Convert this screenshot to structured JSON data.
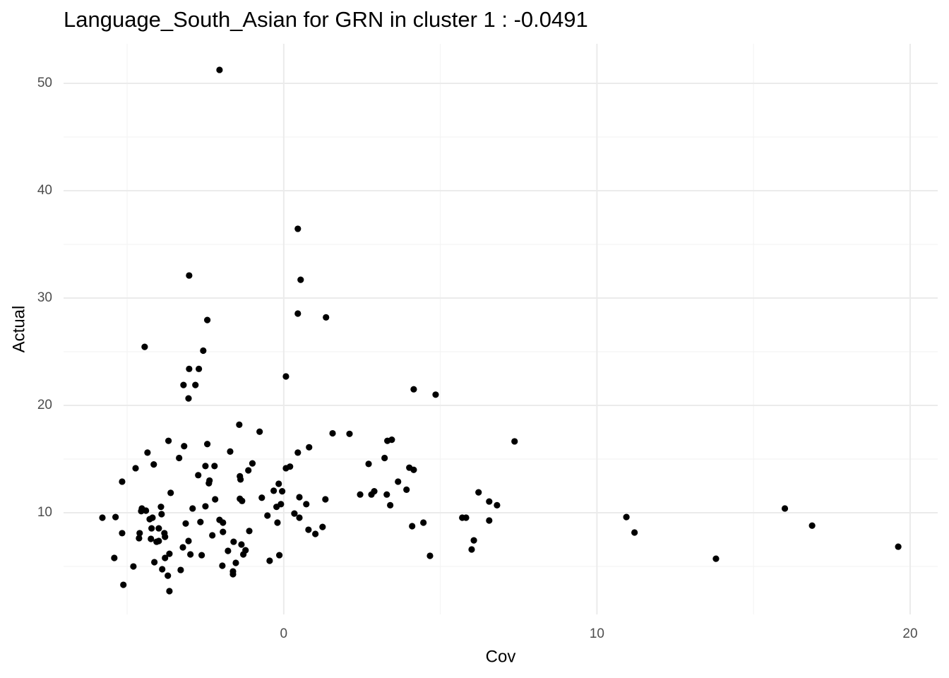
{
  "chart_data": {
    "type": "scatter",
    "title": "Language_South_Asian for GRN in cluster 1 : -0.0491",
    "xlabel": "Cov",
    "ylabel": "Actual",
    "color": "#000000",
    "grid": true,
    "xlim": [
      -7.03,
      20.88
    ],
    "ylim": [
      0.53,
      53.68
    ],
    "xticks": [
      0,
      10,
      20
    ],
    "yticks": [
      10,
      20,
      30,
      40,
      50
    ],
    "xminor": [
      -5,
      5,
      15
    ],
    "yminor": [
      5,
      15,
      25,
      35,
      45
    ],
    "x": [
      -2.05,
      0.45,
      0.54,
      -3.02,
      0.45,
      1.35,
      -2.44,
      -4.44,
      -2.57,
      -3.02,
      -2.71,
      0.07,
      -3.2,
      -2.82,
      -3.04,
      4.15,
      4.85,
      -1.42,
      -0.77,
      1.56,
      2.1,
      7.37,
      3.31,
      3.45,
      -3.68,
      -3.18,
      -2.44,
      -1.71,
      0.81,
      0.45,
      -4.35,
      -3.34,
      3.22,
      -1.0,
      -4.15,
      2.71,
      -4.73,
      -2.5,
      -2.21,
      0.07,
      0.2,
      4.01,
      4.15,
      -1.13,
      -2.73,
      -1.4,
      -1.38,
      -2.37,
      -2.39,
      3.65,
      -5.16,
      -0.16,
      -0.32,
      -0.05,
      3.92,
      -3.61,
      6.22,
      2.89,
      2.8,
      2.44,
      3.29,
      -0.7,
      0.5,
      -1.4,
      -2.19,
      -1.33,
      1.33,
      6.56,
      3.4,
      6.81,
      0.72,
      -0.09,
      -0.23,
      -2.5,
      -2.91,
      -3.92,
      -4.53,
      -4.4,
      -4.55,
      16.0,
      -3.9,
      0.34,
      -0.52,
      -5.37,
      -5.79,
      -4.19,
      -4.28,
      5.7,
      5.82,
      10.94,
      0.5,
      -2.05,
      -1.94,
      -2.66,
      -3.13,
      -0.2,
      6.56,
      4.46,
      4.1,
      1.24,
      16.87,
      -4.22,
      -3.99,
      -1.1,
      0.79,
      -4.6,
      -5.16,
      -3.81,
      -1.94,
      1.01,
      11.2,
      -2.28,
      -3.79,
      -4.62,
      -4.24,
      -4.06,
      -3.04,
      -3.99,
      6.07,
      -1.6,
      -1.35,
      -3.22,
      19.62,
      6.0,
      -1.78,
      -1.22,
      -3.65,
      -2.98,
      -2.62,
      -0.14,
      4.67,
      -1.29,
      -3.79,
      -5.41,
      13.8,
      -0.45,
      -4.13,
      -1.53,
      -4.8,
      -1.96,
      -3.88,
      -3.29,
      -1.62,
      -1.62,
      -3.7,
      -5.12,
      -3.65
    ],
    "y": [
      51.25,
      36.45,
      31.7,
      32.1,
      28.55,
      28.2,
      27.95,
      25.45,
      25.1,
      23.4,
      23.4,
      22.7,
      21.9,
      21.9,
      20.65,
      21.5,
      21.0,
      18.2,
      17.55,
      17.4,
      17.35,
      16.65,
      16.7,
      16.8,
      16.7,
      16.2,
      16.4,
      15.7,
      16.1,
      15.6,
      15.6,
      15.1,
      15.1,
      14.6,
      14.5,
      14.55,
      14.15,
      14.35,
      14.35,
      14.15,
      14.3,
      14.2,
      14.0,
      13.95,
      13.5,
      13.4,
      13.1,
      13.0,
      12.75,
      12.9,
      12.9,
      12.7,
      12.05,
      12.0,
      12.15,
      11.85,
      11.9,
      12.0,
      11.7,
      11.7,
      11.7,
      11.4,
      11.45,
      11.3,
      11.25,
      11.1,
      11.25,
      11.05,
      10.7,
      10.7,
      10.8,
      10.8,
      10.55,
      10.6,
      10.4,
      10.55,
      10.4,
      10.2,
      10.15,
      10.4,
      9.87,
      9.93,
      9.74,
      9.6,
      9.54,
      9.54,
      9.4,
      9.54,
      9.54,
      9.6,
      9.54,
      9.34,
      9.08,
      9.14,
      9.0,
      9.08,
      9.28,
      9.08,
      8.75,
      8.68,
      8.8,
      8.55,
      8.55,
      8.3,
      8.42,
      8.1,
      8.1,
      8.1,
      8.22,
      8.03,
      8.16,
      7.9,
      7.76,
      7.63,
      7.57,
      7.3,
      7.37,
      7.37,
      7.43,
      7.3,
      7.04,
      6.78,
      6.84,
      6.58,
      6.45,
      6.51,
      6.18,
      6.12,
      6.05,
      6.05,
      5.99,
      6.12,
      5.79,
      5.79,
      5.72,
      5.53,
      5.4,
      5.33,
      5.0,
      5.07,
      4.74,
      4.67,
      4.54,
      4.28,
      4.14,
      3.29,
      2.7
    ]
  }
}
